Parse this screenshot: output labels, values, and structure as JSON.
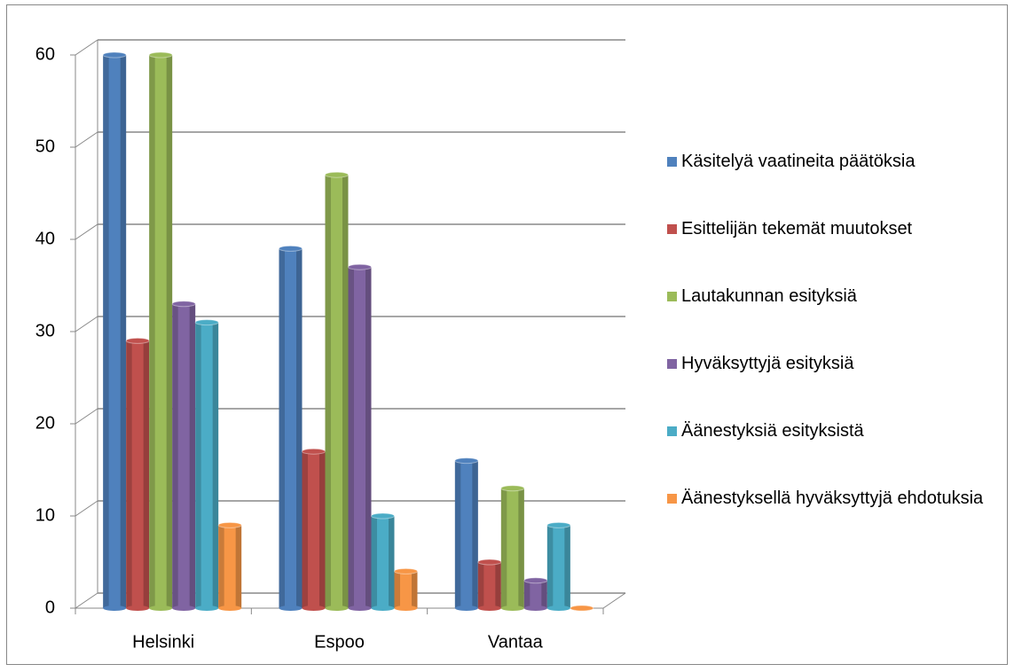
{
  "chart_data": {
    "type": "bar3d",
    "categories": [
      "Helsinki",
      "Espoo",
      "Vantaa"
    ],
    "series": [
      {
        "name": "Käsitelyä vaatineita päätöksia",
        "color": "#4f81bd",
        "values": [
          60,
          39,
          16
        ]
      },
      {
        "name": "Esittelijän tekemät muutokset",
        "color": "#c0504d",
        "values": [
          29,
          17,
          5
        ]
      },
      {
        "name": "Lautakunnan esityksiä",
        "color": "#9bbb59",
        "values": [
          60,
          47,
          13
        ]
      },
      {
        "name": "Hyväksyttyjä esityksiä",
        "color": "#8064a2",
        "values": [
          33,
          37,
          3
        ]
      },
      {
        "name": "Äänestyksiä esityksistä",
        "color": "#4bacc6",
        "values": [
          31,
          10,
          9
        ]
      },
      {
        "name": "Äänestyksellä hyväksyttyjä ehdotuksia",
        "color": "#f79646",
        "values": [
          9,
          4,
          0
        ]
      }
    ],
    "ylim": [
      0,
      60
    ],
    "yticks": [
      0,
      10,
      20,
      30,
      40,
      50,
      60
    ],
    "grid": true,
    "legend": "right"
  }
}
